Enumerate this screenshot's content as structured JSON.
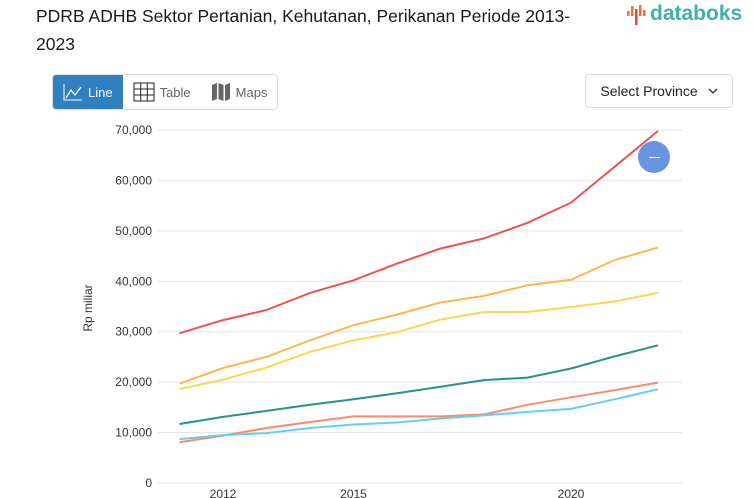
{
  "header": {
    "title": "PDRB ADHB Sektor Pertanian, Kehutanan, Perikanan Periode 2013-2023",
    "logo": "databoks"
  },
  "tabs": [
    {
      "label": "Line",
      "icon": "line-chart-icon",
      "active": true
    },
    {
      "label": "Table",
      "icon": "table-icon",
      "active": false
    },
    {
      "label": "Maps",
      "icon": "map-icon",
      "active": false
    }
  ],
  "province_select": {
    "label": "Select Province",
    "icon": "chevron-down-icon"
  },
  "fab": {
    "icon": "minus-icon",
    "color": "#6a93e0"
  },
  "chart_data": {
    "type": "line",
    "title": "PDRB ADHB Sektor Pertanian, Kehutanan, Perikanan Periode 2013-2023",
    "ylabel": "Rp miliar",
    "xlabel": "",
    "ylim": [
      0,
      70000
    ],
    "yticks": [
      "0",
      "10,000",
      "20,000",
      "30,000",
      "40,000",
      "50,000",
      "60,000",
      "70,000"
    ],
    "xticks": [
      "2012",
      "2015",
      "2020"
    ],
    "x": [
      2011,
      2012,
      2013,
      2014,
      2015,
      2016,
      2017,
      2018,
      2019,
      2020,
      2021,
      2022
    ],
    "grid": true,
    "series": [
      {
        "color": "#ef5350",
        "values": [
          29700,
          32300,
          34300,
          37700,
          40200,
          43500,
          46500,
          48500,
          51600,
          55600,
          62700,
          69800
        ]
      },
      {
        "color": "#ffb74d",
        "values": [
          19700,
          22800,
          25000,
          28300,
          31300,
          33400,
          35800,
          37100,
          39200,
          40300,
          44200,
          46700
        ]
      },
      {
        "color": "#ffd54f",
        "values": [
          18600,
          20500,
          22900,
          26000,
          28300,
          29900,
          32400,
          33900,
          33900,
          34900,
          36000,
          37700
        ]
      },
      {
        "color": "#26938f",
        "values": [
          11700,
          13100,
          14300,
          15500,
          16600,
          17800,
          19100,
          20400,
          20900,
          22700,
          25100,
          27300
        ]
      },
      {
        "color": "#ff8a65",
        "values": [
          8100,
          9400,
          10900,
          12100,
          13200,
          13200,
          13200,
          13600,
          15500,
          17000,
          18400,
          19900
        ]
      },
      {
        "color": "#64cff6",
        "values": [
          8700,
          9500,
          9900,
          10900,
          11600,
          12000,
          12800,
          13400,
          14100,
          14700,
          16600,
          18600
        ]
      }
    ]
  }
}
